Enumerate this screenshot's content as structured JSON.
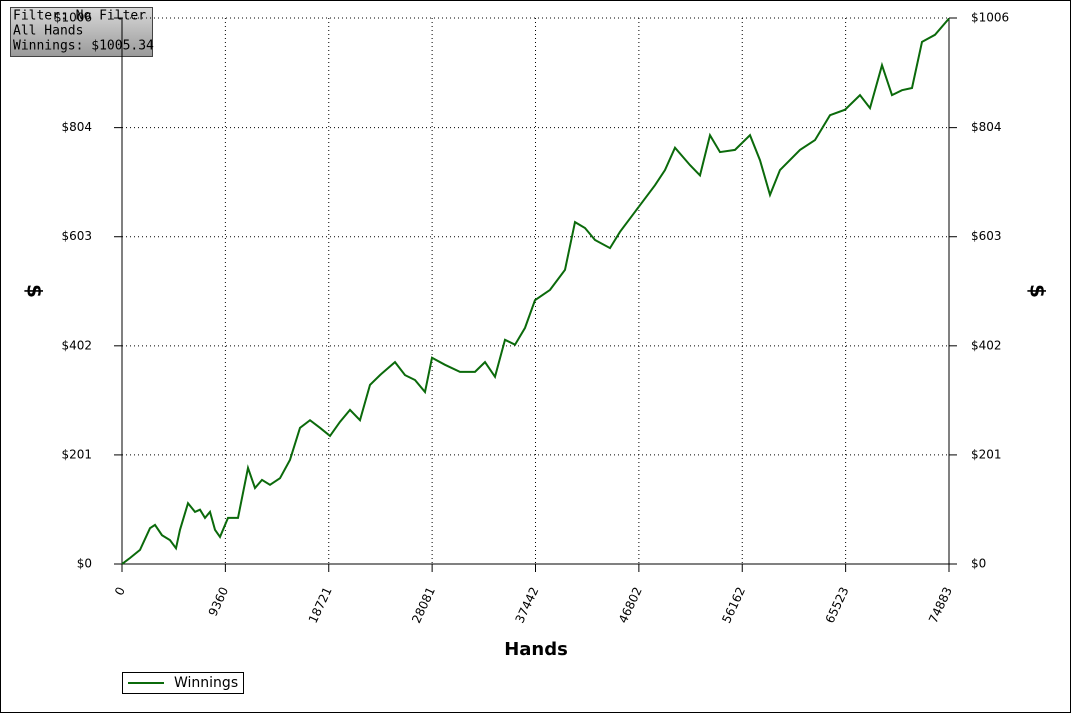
{
  "chart_data": {
    "type": "line",
    "annotation": [
      "Filter: No Filter",
      "All Hands",
      "Winnings: $1005.34"
    ],
    "xlabel": "Hands",
    "ylabel": "$",
    "y2label": "$",
    "xlim": [
      0,
      74883
    ],
    "xticks": [
      0,
      9360,
      18721,
      28081,
      37442,
      46802,
      56162,
      65523,
      74883
    ],
    "ylim": [
      0,
      1006
    ],
    "yticks": [
      {
        "value": 0,
        "label": "$0"
      },
      {
        "value": 201,
        "label": "$201"
      },
      {
        "value": 402,
        "label": "$402"
      },
      {
        "value": 603,
        "label": "$603"
      },
      {
        "value": 804,
        "label": "$804"
      },
      {
        "value": 1006,
        "label": "$1006"
      }
    ],
    "grid": true,
    "series": [
      {
        "name": "Winnings",
        "color": "#0b6a0b",
        "x": [
          0,
          724,
          1630,
          2535,
          2988,
          3622,
          4346,
          4890,
          5252,
          5976,
          6610,
          7063,
          7515,
          7968,
          8421,
          8874,
          9598,
          10503,
          11409,
          12043,
          12677,
          13401,
          14307,
          15212,
          16117,
          17023,
          17928,
          18834,
          19739,
          20645,
          21550,
          22456,
          23361,
          24720,
          25625,
          26530,
          27436,
          28070,
          29247,
          30605,
          31963,
          32868,
          33774,
          34679,
          35584,
          36490,
          37395,
          38753,
          40111,
          41017,
          41922,
          42828,
          44186,
          45092,
          46902,
          48260,
          49166,
          50071,
          51429,
          52335,
          53240,
          54146,
          55504,
          56863,
          57768,
          58674,
          59579,
          61390,
          62748,
          64106,
          65465,
          66823,
          67728,
          68815,
          69720,
          70626,
          71531,
          72436,
          73613,
          74883
        ],
        "values": [
          0,
          11,
          26,
          66,
          72,
          53,
          44,
          29,
          63,
          112,
          96,
          100,
          85,
          96,
          63,
          50,
          85,
          85,
          177,
          140,
          155,
          146,
          158,
          192,
          251,
          265,
          251,
          236,
          262,
          284,
          265,
          330,
          348,
          372,
          348,
          339,
          317,
          380,
          367,
          354,
          354,
          372,
          345,
          413,
          404,
          435,
          486,
          505,
          542,
          630,
          619,
          597,
          582,
          612,
          661,
          698,
          726,
          767,
          735,
          716,
          790,
          759,
          763,
          790,
          744,
          680,
          726,
          763,
          781,
          827,
          837,
          864,
          840,
          919,
          864,
          873,
          877,
          962,
          975,
          1005
        ]
      }
    ]
  }
}
